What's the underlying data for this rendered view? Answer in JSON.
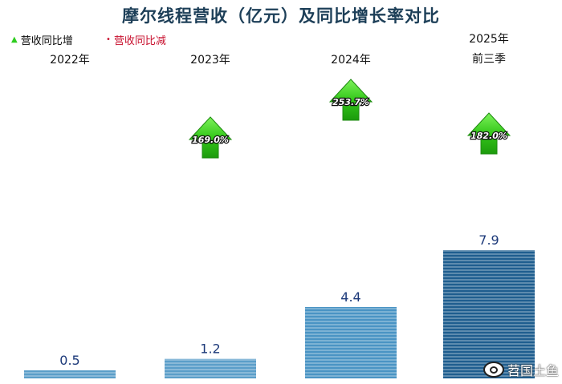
{
  "chart_data": {
    "type": "bar",
    "title": "摩尔线程营收（亿元）及同比增长率对比",
    "categories": [
      [
        "2022年"
      ],
      [
        "2023年"
      ],
      [
        "2024年"
      ],
      [
        "2025年",
        "前三季"
      ]
    ],
    "values": [
      0.5,
      1.2,
      4.4,
      7.9
    ],
    "value_labels": [
      "0.5",
      "1.2",
      "4.4",
      "7.9"
    ],
    "growth": [
      null,
      "169.0%",
      "253.7%",
      "182.0%"
    ],
    "legend": [
      {
        "label": "营收同比增",
        "color": "#2ecc1f"
      },
      {
        "label": "营收同比减",
        "color": "#c8102e"
      }
    ],
    "bar_colors": [
      "#5b9ec9",
      "#5b9ec9",
      "#4a94c4",
      "#1f5e8f"
    ],
    "arrow_color": "#3fd21c",
    "label_color": "#1d3a7a",
    "ylim": [
      0,
      8.5
    ],
    "grid": false
  },
  "watermark": "苕国土鱼"
}
